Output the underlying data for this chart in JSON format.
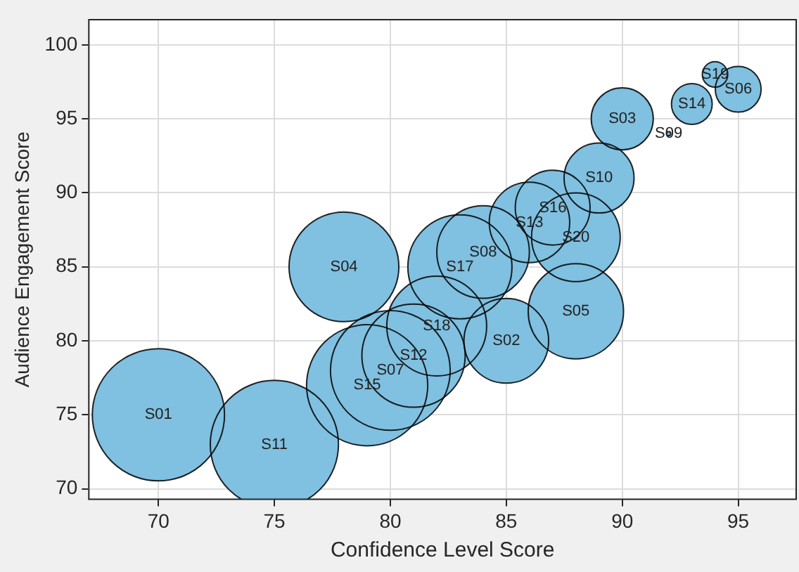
{
  "chart_data": {
    "type": "bubble",
    "xlabel": "Confidence Level Score",
    "ylabel": "Audience Engagement Score",
    "xlim": [
      67,
      97.5
    ],
    "ylim": [
      69.3,
      101.7
    ],
    "xticks": [
      70,
      75,
      80,
      85,
      90,
      95
    ],
    "yticks": [
      70,
      75,
      80,
      85,
      90,
      95,
      100
    ],
    "grid": true,
    "legend": false,
    "series": [
      {
        "color": "#80c0e0",
        "x": [
          70,
          85,
          90,
          78,
          88,
          95,
          80,
          84,
          92,
          89,
          75,
          81,
          86,
          93,
          79,
          87,
          83,
          82,
          94,
          88
        ],
        "values": [
          75,
          80,
          95,
          85,
          82,
          97,
          78,
          86,
          94,
          91,
          73,
          79,
          88,
          96,
          77,
          89,
          85,
          81,
          98,
          87
        ],
        "sizes": [
          1,
          0.41,
          0.22,
          0.69,
          0.52,
          0.12,
          0.82,
          0.49,
          0.001,
          0.28,
          0.94,
          0.61,
          0.37,
          0.095,
          0.84,
          0.32,
          0.62,
          0.57,
          0.037,
          0.45
        ]
      }
    ],
    "annotations": [
      {
        "text": "S01",
        "x": 70,
        "y": 75
      },
      {
        "text": "S02",
        "x": 85,
        "y": 80
      },
      {
        "text": "S03",
        "x": 90,
        "y": 95
      },
      {
        "text": "S04",
        "x": 78,
        "y": 85
      },
      {
        "text": "S05",
        "x": 88,
        "y": 82
      },
      {
        "text": "S06",
        "x": 95,
        "y": 97
      },
      {
        "text": "S07",
        "x": 80,
        "y": 78
      },
      {
        "text": "S08",
        "x": 84,
        "y": 86
      },
      {
        "text": "S09",
        "x": 92,
        "y": 94
      },
      {
        "text": "S10",
        "x": 89,
        "y": 91
      },
      {
        "text": "S11",
        "x": 75,
        "y": 73
      },
      {
        "text": "S12",
        "x": 81,
        "y": 79
      },
      {
        "text": "S13",
        "x": 86,
        "y": 88
      },
      {
        "text": "S14",
        "x": 93,
        "y": 96
      },
      {
        "text": "S15",
        "x": 79,
        "y": 77
      },
      {
        "text": "S16",
        "x": 87,
        "y": 89
      },
      {
        "text": "S17",
        "x": 83,
        "y": 85
      },
      {
        "text": "S18",
        "x": 82,
        "y": 81
      },
      {
        "text": "S19",
        "x": 94,
        "y": 98
      },
      {
        "text": "S20",
        "x": 88,
        "y": 87
      }
    ]
  }
}
